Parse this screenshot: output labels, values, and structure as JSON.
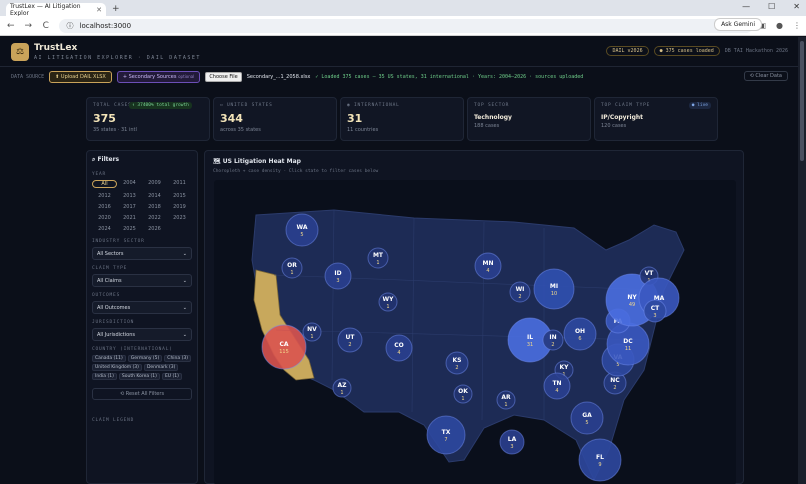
{
  "browser": {
    "tab_title": "TrustLex — AI Litigation Explor",
    "new_tab": "+",
    "url": "localhost:3000",
    "ask_gemini": "Ask Gemini",
    "back": "←",
    "forward": "→",
    "reload": "C",
    "star": "☆",
    "minimize": "—",
    "maximize": "☐",
    "close": "✕"
  },
  "header": {
    "logo": "⚖",
    "brand": "TrustLex",
    "tagline": "AI LITIGATION EXPLORER · DAIL DATASET",
    "dail_badge": "DAIL v2026",
    "loaded_badge": "● 375 cases loaded",
    "event": "DB TAI Hackathon 2026"
  },
  "source": {
    "label": "DATA SOURCE",
    "upload": "⬆ Upload DAIL XLSX",
    "secondary": "+ Secondary Sources",
    "secondary_note": "optional",
    "choose": "Choose File",
    "filename": "Secondary_...1_2058.xlsx",
    "status": "✓ Loaded 375 cases — 35 US states, 31 international · Years: 2004–2026 · sources uploaded",
    "clear": "⟲ Clear Data"
  },
  "stats": [
    {
      "label": "TOTAL CASES",
      "badge": "↑ 37400% total growth",
      "value": "375",
      "sub": "35 states · 31 intl"
    },
    {
      "label": "▭ UNITED STATES",
      "value": "344",
      "sub": "across 35 states"
    },
    {
      "label": "◉ INTERNATIONAL",
      "value": "31",
      "sub": "11 countries"
    },
    {
      "label": "TOP SECTOR",
      "value": "Technology",
      "sub": "188 cases"
    },
    {
      "label": "TOP CLAIM TYPE",
      "badge": "● live",
      "value": "IP/Copyright",
      "sub": "120 cases"
    }
  ],
  "filters": {
    "title": "⌕ Filters",
    "year_label": "YEAR",
    "years": [
      "All",
      "2004",
      "2009",
      "2011",
      "2012",
      "2013",
      "2014",
      "2015",
      "2016",
      "2017",
      "2018",
      "2019",
      "2020",
      "2021",
      "2022",
      "2023",
      "2024",
      "2025",
      "2026"
    ],
    "industry_label": "INDUSTRY SECTOR",
    "industry_value": "All Sectors",
    "claim_label": "CLAIM TYPE",
    "claim_value": "All Claims",
    "outcome_label": "OUTCOMES",
    "outcome_value": "All Outcomes",
    "jurisdiction_label": "JURISDICTION",
    "jurisdiction_value": "All Jurisdictions",
    "country_label": "COUNTRY (INTERNATIONAL)",
    "countries": [
      "Canada (11)",
      "Germany (5)",
      "China (3)",
      "United Kingdom (3)",
      "Denmark (3)",
      "India (1)",
      "South Korea (1)",
      "EU (1)"
    ],
    "reset": "⟲ Reset All Filters",
    "legend_label": "CLAIM LEGEND",
    "chevron": "⌄"
  },
  "map": {
    "title": "🗺 US Litigation Heat Map",
    "subtitle": "Choropleth + case density · Click state to filter cases below"
  },
  "bubbles": [
    {
      "s": "WA",
      "n": "5",
      "c": "#2a3f8f"
    },
    {
      "s": "OR",
      "n": "1",
      "c": "#223370"
    },
    {
      "s": "ID",
      "n": "3",
      "c": "#2a3f8f"
    },
    {
      "s": "MT",
      "n": "1",
      "c": "#223370"
    },
    {
      "s": "WY",
      "n": "1",
      "c": "#223370"
    },
    {
      "s": "NV",
      "n": "1",
      "c": "#223370"
    },
    {
      "s": "UT",
      "n": "2",
      "c": "#263a80"
    },
    {
      "s": "CA",
      "n": "115",
      "c": "#d9534f"
    },
    {
      "s": "AZ",
      "n": "1",
      "c": "#223370"
    },
    {
      "s": "CO",
      "n": "4",
      "c": "#2a3f8f"
    },
    {
      "s": "MN",
      "n": "4",
      "c": "#2a3f8f"
    },
    {
      "s": "WI",
      "n": "2",
      "c": "#263a80"
    },
    {
      "s": "MI",
      "n": "10",
      "c": "#3050b0"
    },
    {
      "s": "IL",
      "n": "31",
      "c": "#4a6ee0"
    },
    {
      "s": "IN",
      "n": "2",
      "c": "#263a80"
    },
    {
      "s": "OH",
      "n": "6",
      "c": "#2e48a0"
    },
    {
      "s": "KS",
      "n": "2",
      "c": "#263a80"
    },
    {
      "s": "OK",
      "n": "1",
      "c": "#223370"
    },
    {
      "s": "TX",
      "n": "7",
      "c": "#2e48a0"
    },
    {
      "s": "AR",
      "n": "1",
      "c": "#223370"
    },
    {
      "s": "LA",
      "n": "3",
      "c": "#2a3f8f"
    },
    {
      "s": "KY",
      "n": "1",
      "c": "#223370"
    },
    {
      "s": "TN",
      "n": "4",
      "c": "#2a3f8f"
    },
    {
      "s": "GA",
      "n": "5",
      "c": "#2a3f8f"
    },
    {
      "s": "FL",
      "n": "9",
      "c": "#2e48a0"
    },
    {
      "s": "NC",
      "n": "2",
      "c": "#263a80"
    },
    {
      "s": "VA",
      "n": "5",
      "c": "#2e48a0"
    },
    {
      "s": "DC",
      "n": "11",
      "c": "#3a58c0"
    },
    {
      "s": "PA",
      "n": "",
      "c": "#3a58c0"
    },
    {
      "s": "NY",
      "n": "49",
      "c": "#4a6ee0"
    },
    {
      "s": "VT",
      "n": "1",
      "c": "#223370"
    },
    {
      "s": "MA",
      "n": "",
      "c": "#3a58c0"
    },
    {
      "s": "CT",
      "n": "3",
      "c": "#2e48a0"
    }
  ]
}
